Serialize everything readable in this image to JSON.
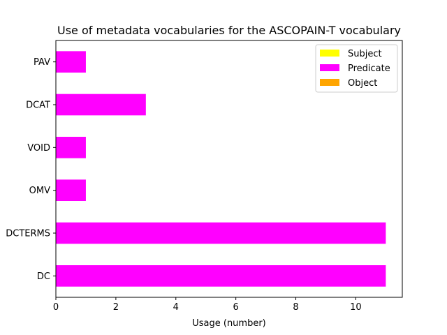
{
  "chart_data": {
    "type": "bar",
    "orientation": "horizontal",
    "stacked": true,
    "title": "Use of metadata vocabularies for the ASCOPAIN-T vocabulary",
    "xlabel": "Usage (number)",
    "ylabel": "",
    "categories": [
      "DC",
      "DCTERMS",
      "OMV",
      "VOID",
      "DCAT",
      "PAV"
    ],
    "series": [
      {
        "name": "Subject",
        "color": "#ffff00",
        "values": [
          0,
          0,
          0,
          0,
          0,
          0
        ]
      },
      {
        "name": "Predicate",
        "color": "#ff00ff",
        "values": [
          11,
          11,
          1,
          1,
          3,
          1
        ]
      },
      {
        "name": "Object",
        "color": "#ffa500",
        "values": [
          0,
          0,
          0,
          0,
          0,
          0
        ]
      }
    ],
    "xlim": [
      0,
      11.55
    ],
    "xticks": [
      0,
      2,
      4,
      6,
      8,
      10
    ],
    "grid": false,
    "legend_position": "top-right"
  }
}
